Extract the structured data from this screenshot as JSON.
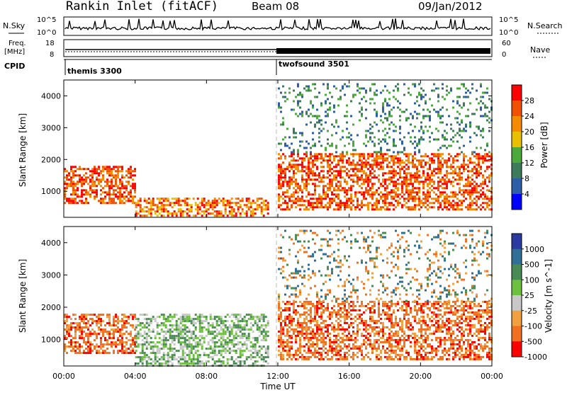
{
  "header": {
    "station": "Rankin Inlet (fitACF)",
    "beam": "Beam 08",
    "date": "09/Jan/2012"
  },
  "strip_labels": {
    "nsky": "N.Sky",
    "nsearch": "N.Search",
    "freq_line1": "Freq.",
    "freq_line2": "[MHz]",
    "cpid": "CPID",
    "nave": "Nave",
    "tick_1e5": "10^5",
    "tick_1e0": "10^0",
    "tick_1e5_right": "10^5",
    "tick_1e0_right": "10^0",
    "freq_18": "18",
    "freq_8": "8",
    "nave_60": "60",
    "nave_0": "0"
  },
  "cpid_programs": [
    {
      "name": "themis 3300",
      "start_hour": 0
    },
    {
      "name": "twofsound 3501",
      "start_hour": 12
    }
  ],
  "colors": {
    "power": [
      "#0000ff",
      "#2f5ea8",
      "#3e7b5a",
      "#4caa3c",
      "#e8c000",
      "#f58b00",
      "#f05000",
      "#ff0000"
    ],
    "velocity": [
      "#2a3aa0",
      "#2f6f98",
      "#4a8a55",
      "#6dbf3e",
      "#c8c8c8",
      "#f0a040",
      "#f07020",
      "#ff0000"
    ]
  },
  "chart_data": [
    {
      "type": "heatmap",
      "title": "",
      "xlabel": "Time UT",
      "ylabel": "Slant Range [km]",
      "x_ticks": [
        "00:00",
        "04:00",
        "08:00",
        "12:00",
        "16:00",
        "20:00",
        "00:00"
      ],
      "y_ticks": [
        "1000",
        "2000",
        "3000",
        "4000"
      ],
      "xlim_hours": [
        0,
        24
      ],
      "ylim_km": [
        180,
        4500
      ],
      "colorbar": {
        "label": "Power [dB]",
        "ticks": [
          "4",
          "8",
          "12",
          "16",
          "20",
          "24",
          "28"
        ]
      },
      "regions": [
        {
          "t0": 0.0,
          "t1": 4.0,
          "r0": 600,
          "r1": 1800,
          "level": "high"
        },
        {
          "t0": 4.0,
          "t1": 11.5,
          "r0": 200,
          "r1": 800,
          "level": "medium"
        },
        {
          "t0": 12.0,
          "t1": 24.0,
          "r0": 400,
          "r1": 2200,
          "level": "high"
        },
        {
          "t0": 12.0,
          "t1": 24.0,
          "r0": 2200,
          "r1": 4400,
          "level": "low"
        }
      ]
    },
    {
      "type": "heatmap",
      "title": "",
      "xlabel": "Time UT",
      "ylabel": "Slant Range [km]",
      "x_ticks": [
        "00:00",
        "04:00",
        "08:00",
        "12:00",
        "16:00",
        "20:00",
        "00:00"
      ],
      "y_ticks": [
        "1000",
        "2000",
        "3000",
        "4000"
      ],
      "xlim_hours": [
        0,
        24
      ],
      "ylim_km": [
        180,
        4500
      ],
      "colorbar": {
        "label": "Velocity [m s^-1]",
        "ticks": [
          "1000",
          "500",
          "100",
          "25",
          "-25",
          "-100",
          "-500",
          "-1000"
        ]
      },
      "regions": [
        {
          "t0": 0.0,
          "t1": 4.0,
          "r0": 600,
          "r1": 1800,
          "level": "orange"
        },
        {
          "t0": 4.0,
          "t1": 11.5,
          "r0": 200,
          "r1": 1800,
          "level": "green"
        },
        {
          "t0": 12.0,
          "t1": 24.0,
          "r0": 400,
          "r1": 2200,
          "level": "orange"
        },
        {
          "t0": 12.0,
          "t1": 24.0,
          "r0": 2200,
          "r1": 4400,
          "level": "mixed"
        }
      ]
    }
  ]
}
